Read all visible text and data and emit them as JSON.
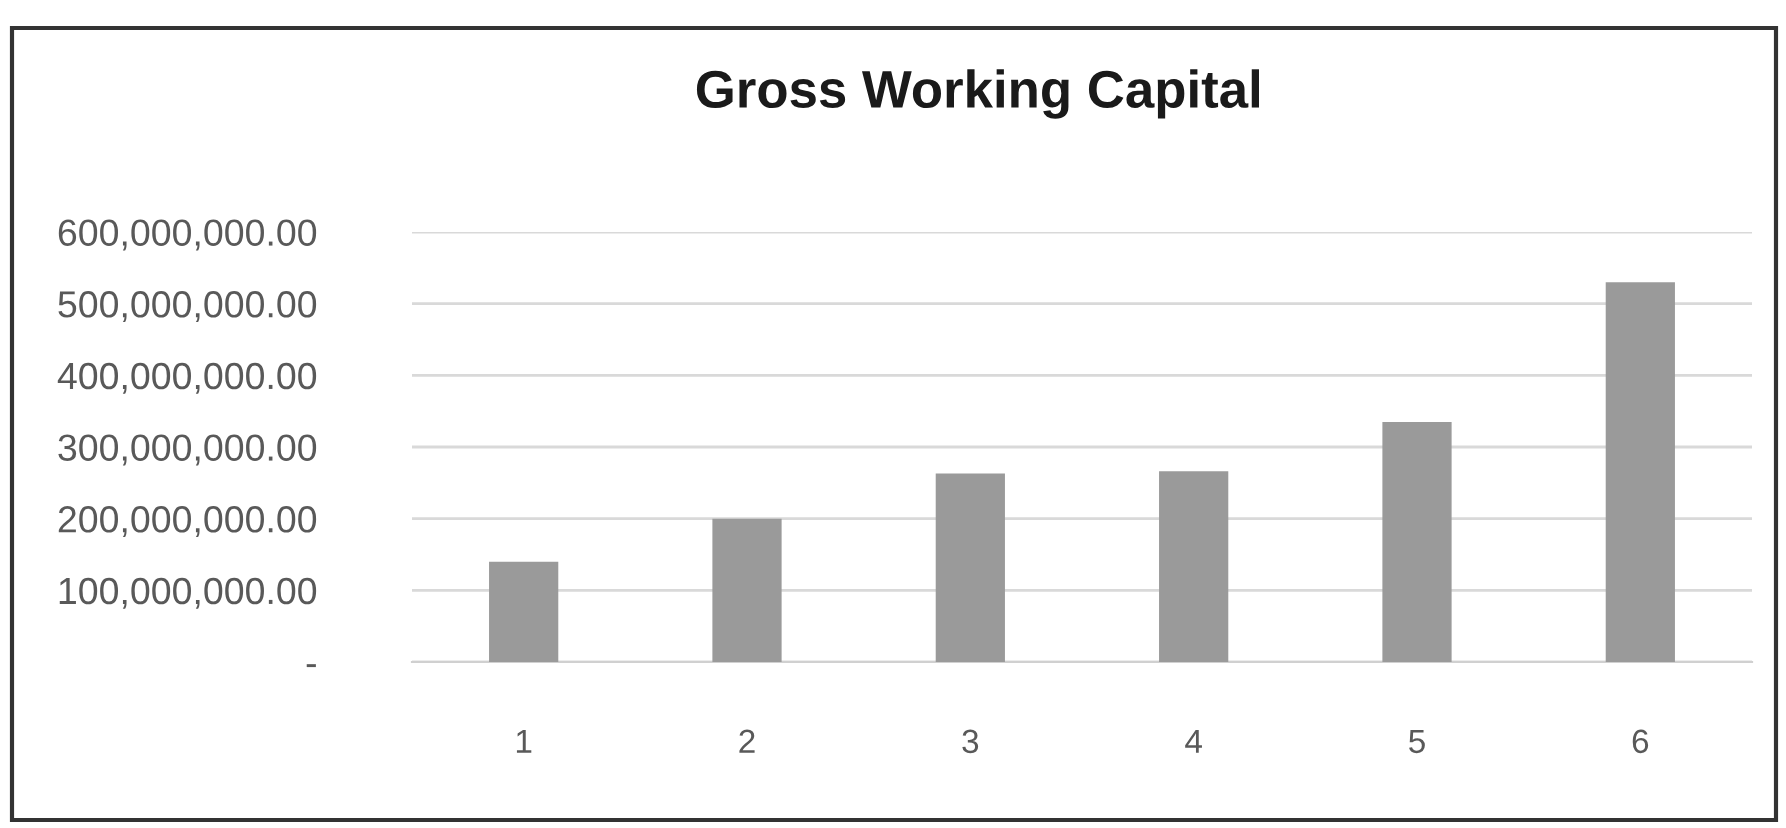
{
  "chart_data": {
    "type": "bar",
    "title": "Gross Working Capital",
    "categories": [
      "1",
      "2",
      "3",
      "4",
      "5",
      "6"
    ],
    "values": [
      140000000,
      200000000,
      263000000,
      266000000,
      335000000,
      530000000
    ],
    "color": "#9a9a9a",
    "ylim": [
      0,
      600000000
    ],
    "yticks": [
      {
        "value": 0,
        "label": "-"
      },
      {
        "value": 100000000,
        "label": "100,000,000.00"
      },
      {
        "value": 200000000,
        "label": "200,000,000.00"
      },
      {
        "value": 300000000,
        "label": "300,000,000.00"
      },
      {
        "value": 400000000,
        "label": "400,000,000.00"
      },
      {
        "value": 500000000,
        "label": "500,000,000.00"
      },
      {
        "value": 600000000,
        "label": "600,000,000.00"
      }
    ],
    "grid": "y",
    "legend": false
  }
}
